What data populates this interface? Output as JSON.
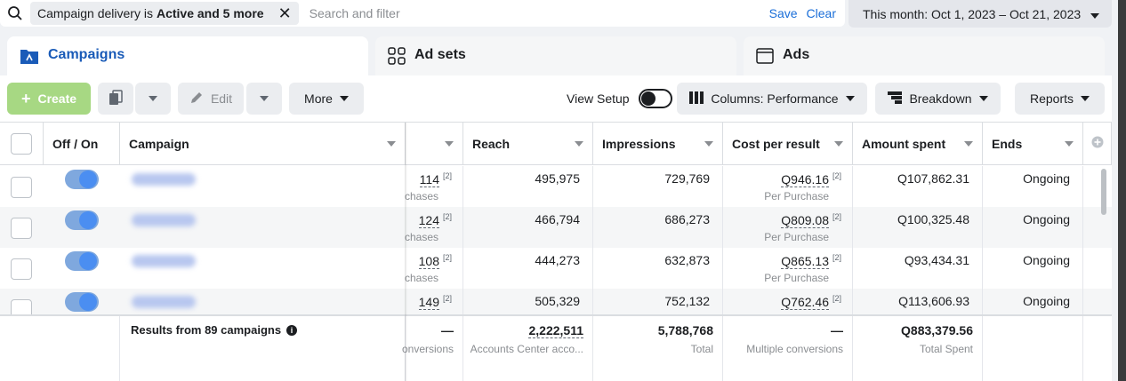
{
  "filter": {
    "chip_prefix": "Campaign delivery is",
    "chip_bold": "Active and 5 more",
    "placeholder": "Search and filter",
    "save": "Save",
    "clear": "Clear"
  },
  "date_range": "This month: Oct 1, 2023 – Oct 21, 2023",
  "tabs": [
    {
      "label": "Campaigns",
      "icon": "folder-icon",
      "active": true
    },
    {
      "label": "Ad sets",
      "icon": "grid-icon",
      "active": false
    },
    {
      "label": "Ads",
      "icon": "ad-window-icon",
      "active": false
    }
  ],
  "toolbar": {
    "create": "Create",
    "edit": "Edit",
    "more": "More",
    "view_setup": "View Setup",
    "columns": "Columns: Performance",
    "breakdown": "Breakdown",
    "reports": "Reports"
  },
  "columns": {
    "off_on": "Off / On",
    "campaign": "Campaign",
    "reach": "Reach",
    "impressions": "Impressions",
    "cost_per_result": "Cost per result",
    "amount_spent": "Amount spent",
    "ends": "Ends"
  },
  "rows": [
    {
      "results": "114",
      "results_sub": "chases",
      "reach": "495,975",
      "impressions": "729,769",
      "cost": "Q946.16",
      "cost_sub": "Per Purchase",
      "spent": "Q107,862.31",
      "ends": "Ongoing"
    },
    {
      "results": "124",
      "results_sub": "chases",
      "reach": "466,794",
      "impressions": "686,273",
      "cost": "Q809.08",
      "cost_sub": "Per Purchase",
      "spent": "Q100,325.48",
      "ends": "Ongoing"
    },
    {
      "results": "108",
      "results_sub": "chases",
      "reach": "444,273",
      "impressions": "632,873",
      "cost": "Q865.13",
      "cost_sub": "Per Purchase",
      "spent": "Q93,434.31",
      "ends": "Ongoing"
    },
    {
      "results": "149",
      "results_sub": "",
      "reach": "505,329",
      "impressions": "752,132",
      "cost": "Q762.46",
      "cost_sub": "",
      "spent": "Q113,606.93",
      "ends": "Ongoing"
    }
  ],
  "footnote_marker": "[2]",
  "footer": {
    "results_label": "Results from 89 campaigns",
    "results_dash": "—",
    "results_sub": "onversions",
    "reach": "2,222,511",
    "reach_sub": "Accounts Center acco...",
    "impressions": "5,788,768",
    "impressions_sub": "Total",
    "cost": "—",
    "cost_sub": "Multiple conversions",
    "spent": "Q883,379.56",
    "spent_sub": "Total Spent"
  }
}
